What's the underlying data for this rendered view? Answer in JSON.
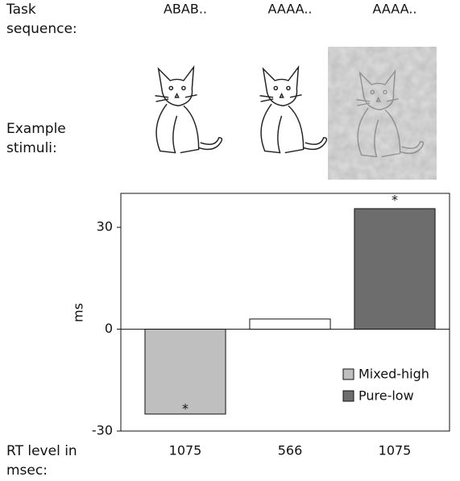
{
  "task_sequence": {
    "label": "Task sequence:",
    "values": [
      "ABAB..",
      "AAAA..",
      "AAAA.."
    ]
  },
  "stimuli_label": "Example stimuli:",
  "chart_data": {
    "type": "bar",
    "ylabel": "ms",
    "xlabel": "RT level in msec:",
    "categories": [
      "1075",
      "566",
      "1075"
    ],
    "values": [
      -25,
      3,
      35.5
    ],
    "colors": [
      "#bfbfbf",
      "#ffffff",
      "#6d6d6d"
    ],
    "annotations": [
      "*",
      null,
      "*"
    ],
    "legend": [
      {
        "name": "Mixed-high",
        "color": "#bfbfbf"
      },
      {
        "name": "Pure-low",
        "color": "#6d6d6d"
      }
    ],
    "ylim": [
      -30,
      40
    ],
    "yticks": [
      -30,
      0,
      30
    ]
  }
}
